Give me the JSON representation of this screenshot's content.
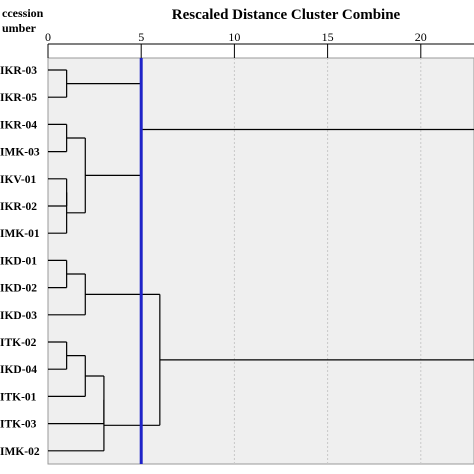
{
  "chart_data": {
    "type": "dendrogram",
    "title": "Rescaled Distance Cluster Combine",
    "header_label_lines": [
      "ccession",
      "umber"
    ],
    "xlim": [
      0,
      25
    ],
    "x_ticks": [
      "0",
      "5",
      "10",
      "15",
      "20"
    ],
    "leaves": [
      "IKR-03",
      "IKR-05",
      "IKR-04",
      "IMK-03",
      "IKV-01",
      "IKR-02",
      "IMK-01",
      "IKD-01",
      "IKD-02",
      "IKD-03",
      "ITK-02",
      "IKD-04",
      "ITK-01",
      "ITK-03",
      "IMK-02"
    ],
    "merges": [
      {
        "id": "c1",
        "children": [
          "IKR-03",
          "IKR-05"
        ],
        "distance": 1.0
      },
      {
        "id": "c2",
        "children": [
          "IKR-04",
          "IMK-03"
        ],
        "distance": 1.0
      },
      {
        "id": "c3",
        "children": [
          "IKV-01",
          "IKR-02"
        ],
        "distance": 1.0
      },
      {
        "id": "c4",
        "children": [
          "c3",
          "IMK-01"
        ],
        "distance": 1.0
      },
      {
        "id": "c5",
        "children": [
          "c2",
          "c4"
        ],
        "distance": 2.0
      },
      {
        "id": "c6",
        "children": [
          "c1",
          "c5"
        ],
        "distance": 5.0
      },
      {
        "id": "c7",
        "children": [
          "IKD-01",
          "IKD-02"
        ],
        "distance": 1.0
      },
      {
        "id": "c8",
        "children": [
          "c7",
          "IKD-03"
        ],
        "distance": 2.0
      },
      {
        "id": "c9",
        "children": [
          "ITK-02",
          "IKD-04"
        ],
        "distance": 1.0
      },
      {
        "id": "c10",
        "children": [
          "c9",
          "ITK-01"
        ],
        "distance": 2.0
      },
      {
        "id": "c11",
        "children": [
          "c10",
          "ITK-03"
        ],
        "distance": 3.0
      },
      {
        "id": "c12",
        "children": [
          "c11",
          "IMK-02"
        ],
        "distance": 3.0
      },
      {
        "id": "c13",
        "children": [
          "c8",
          "c12"
        ],
        "distance": 6.0
      },
      {
        "id": "c14",
        "children": [
          "c6",
          "c13"
        ],
        "distance": 25.0
      }
    ],
    "cutoff_line": 5,
    "colors": {
      "plot_bg": "#efefef",
      "grid": "#c8c8c8",
      "tree": "#000000",
      "cutoff": "#1f23c8"
    },
    "grid": true
  }
}
